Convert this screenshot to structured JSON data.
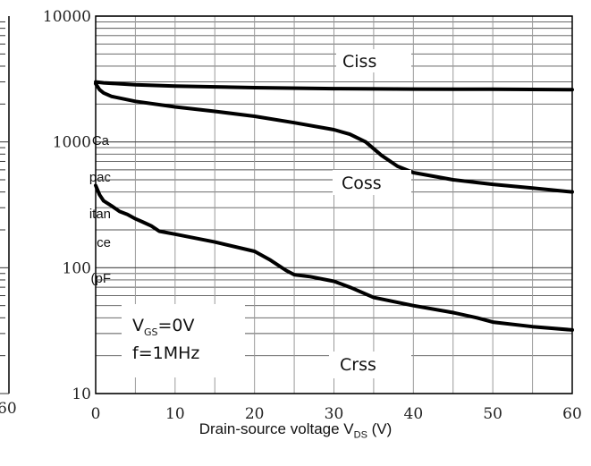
{
  "chart_data": {
    "type": "line",
    "xlabel": "Drain-source voltage V",
    "xlabel_sub": "DS",
    "xlabel_unit": " (V)",
    "ylabel_lines": [
      "Ca",
      "pac",
      "itan",
      "ce",
      "(pF"
    ],
    "y_scale": "log",
    "xlim": [
      0,
      60
    ],
    "ylim": [
      10,
      10000
    ],
    "x_ticks": [
      0,
      10,
      20,
      30,
      40,
      50,
      60
    ],
    "y_ticks": [
      10,
      100,
      1000,
      10000
    ],
    "y_tick_labels": [
      "10",
      "100",
      "1000",
      "10000"
    ],
    "left_panel_tick_label": "60",
    "grid": true,
    "series": [
      {
        "name": "Ciss",
        "x": [
          0,
          1,
          5,
          10,
          20,
          30,
          40,
          50,
          60
        ],
        "y": [
          3000,
          2950,
          2850,
          2780,
          2700,
          2650,
          2630,
          2620,
          2600
        ]
      },
      {
        "name": "Coss",
        "x": [
          0,
          0.5,
          1,
          2,
          5,
          10,
          15,
          20,
          25,
          30,
          32,
          34,
          36,
          38,
          40,
          45,
          50,
          55,
          60
        ],
        "y": [
          2900,
          2600,
          2450,
          2300,
          2100,
          1900,
          1750,
          1600,
          1420,
          1250,
          1150,
          1000,
          780,
          640,
          570,
          500,
          460,
          430,
          400
        ]
      },
      {
        "name": "Crss",
        "x": [
          0,
          0.5,
          1,
          2,
          3,
          4,
          5,
          6,
          7,
          8,
          10,
          15,
          20,
          22,
          24,
          25,
          27,
          30,
          32,
          35,
          40,
          45,
          48,
          50,
          55,
          60
        ],
        "y": [
          450,
          380,
          340,
          310,
          280,
          265,
          245,
          230,
          215,
          195,
          185,
          160,
          135,
          115,
          95,
          88,
          85,
          78,
          70,
          58,
          50,
          44,
          40,
          37,
          34,
          32
        ]
      }
    ],
    "annotations": [
      {
        "text": "Ciss"
      },
      {
        "text": "Coss"
      },
      {
        "text": "Crss"
      }
    ],
    "conditions": {
      "line1_main": "V",
      "line1_sub": "GS",
      "line1_rest": "=0V",
      "line2": "f=1MHz"
    }
  }
}
